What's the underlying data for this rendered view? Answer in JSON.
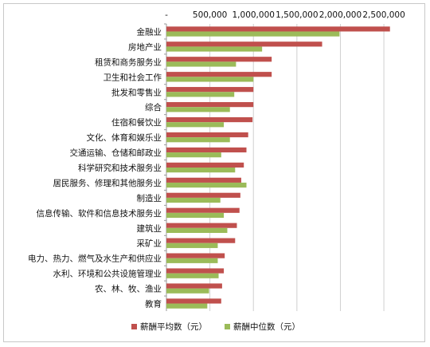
{
  "chart_data": {
    "type": "bar",
    "orientation": "horizontal",
    "title": "",
    "xlabel": "",
    "ylabel": "",
    "xlim": [
      0,
      2600000
    ],
    "x_ticks": [
      "-",
      "500,000",
      "1,000,000",
      "1,500,000",
      "2,000,000",
      "2,500,000"
    ],
    "x_tick_values": [
      0,
      500000,
      1000000,
      1500000,
      2000000,
      2500000
    ],
    "grid": true,
    "legend_position": "bottom",
    "categories": [
      "金融业",
      "房地产业",
      "租赁和商务服务业",
      "卫生和社会工作",
      "批发和零售业",
      "综合",
      "住宿和餐饮业",
      "文化、体育和娱乐业",
      "交通运输、仓储和邮政业",
      "科学研究和技术服务业",
      "居民服务、修理和其他服务业",
      "制造业",
      "信息传输、软件和信息技术服务业",
      "建筑业",
      "采矿业",
      "电力、热力、燃气及水生产和供应业",
      "水利、环境和公共设施管理业",
      "农、林、牧、渔业",
      "教育"
    ],
    "series": [
      {
        "name": "薪酬平均数（元）",
        "color": "#c0504d",
        "values": [
          2570000,
          1790000,
          1210000,
          1210000,
          1000000,
          1000000,
          990000,
          940000,
          920000,
          890000,
          860000,
          850000,
          840000,
          810000,
          790000,
          670000,
          660000,
          640000,
          630000
        ]
      },
      {
        "name": "薪酬中位数（元）",
        "color": "#9bbb59",
        "values": [
          1990000,
          1100000,
          800000,
          1000000,
          780000,
          730000,
          660000,
          730000,
          630000,
          790000,
          920000,
          620000,
          660000,
          700000,
          590000,
          590000,
          600000,
          490000,
          470000
        ]
      }
    ]
  }
}
